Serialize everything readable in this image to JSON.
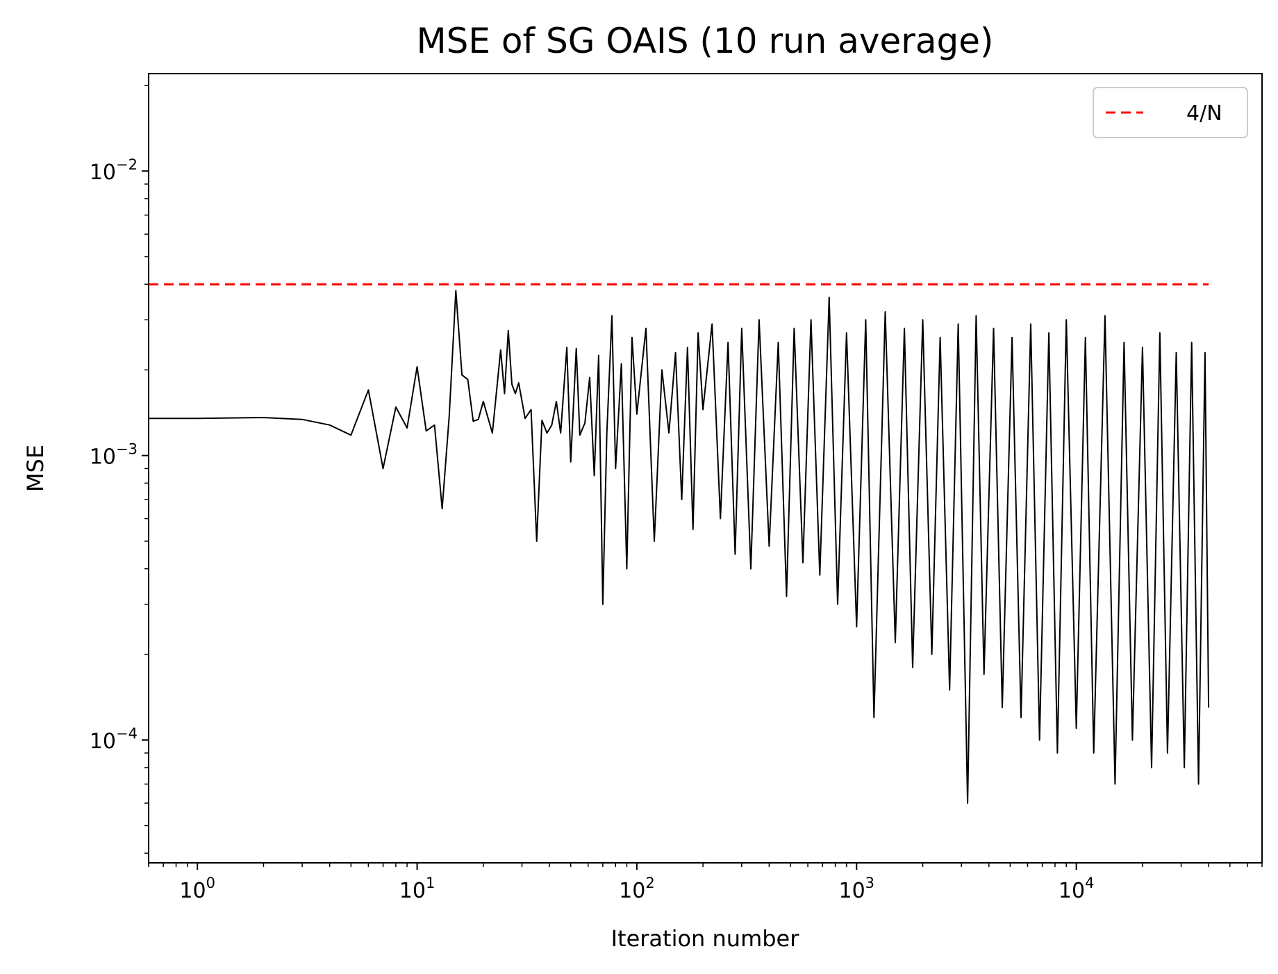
{
  "chart_data": {
    "type": "line",
    "title": "MSE of SG OAIS (10 run average)",
    "xlabel": "Iteration number",
    "ylabel": "MSE",
    "x_scale": "log",
    "y_scale": "log",
    "xlim": [
      0.6,
      70000
    ],
    "ylim": [
      3.7e-05,
      0.022
    ],
    "x_ticks": [
      {
        "value": 1,
        "base": "10",
        "exp": "0"
      },
      {
        "value": 10,
        "base": "10",
        "exp": "1"
      },
      {
        "value": 100,
        "base": "10",
        "exp": "2"
      },
      {
        "value": 1000,
        "base": "10",
        "exp": "3"
      },
      {
        "value": 10000,
        "base": "10",
        "exp": "4"
      }
    ],
    "y_ticks": [
      {
        "value": 0.0001,
        "base": "10",
        "exp": "−4"
      },
      {
        "value": 0.001,
        "base": "10",
        "exp": "−3"
      },
      {
        "value": 0.01,
        "base": "10",
        "exp": "−2"
      }
    ],
    "legend": {
      "position": "upper right",
      "entries": [
        {
          "label": "4/N",
          "color": "#ff0000",
          "style": "dashed"
        }
      ]
    },
    "grid": false,
    "series": [
      {
        "name": "MSE",
        "color": "#000000",
        "x": [
          0.6,
          1,
          2,
          3,
          4,
          5,
          6,
          7,
          8,
          9,
          10,
          11,
          12,
          13,
          14,
          15,
          16,
          17,
          18,
          19,
          20,
          22,
          24,
          25,
          26,
          27,
          28,
          29,
          31,
          33,
          35,
          37,
          39,
          41,
          43,
          45,
          48,
          50,
          53,
          55,
          58,
          61,
          64,
          67,
          70,
          73,
          77,
          80,
          85,
          90,
          95,
          100,
          110,
          120,
          130,
          140,
          150,
          160,
          170,
          180,
          190,
          200,
          220,
          240,
          260,
          280,
          300,
          330,
          360,
          400,
          440,
          480,
          520,
          570,
          620,
          680,
          750,
          820,
          900,
          1000,
          1100,
          1200,
          1350,
          1500,
          1650,
          1800,
          2000,
          2200,
          2400,
          2650,
          2900,
          3200,
          3500,
          3800,
          4200,
          4600,
          5100,
          5600,
          6200,
          6800,
          7500,
          8200,
          9000,
          10000,
          11000,
          12000,
          13500,
          15000,
          16500,
          18000,
          20000,
          22000,
          24000,
          26000,
          28500,
          31000,
          33500,
          36000,
          38500,
          40000
        ],
        "y": [
          0.00135,
          0.00135,
          0.00136,
          0.00134,
          0.00128,
          0.00118,
          0.0017,
          0.0009,
          0.00148,
          0.00125,
          0.00205,
          0.00122,
          0.00128,
          0.00065,
          0.00138,
          0.0038,
          0.00192,
          0.00185,
          0.00132,
          0.00134,
          0.00155,
          0.0012,
          0.00235,
          0.00165,
          0.00275,
          0.00178,
          0.00165,
          0.0018,
          0.00135,
          0.00145,
          0.0005,
          0.00133,
          0.0012,
          0.00128,
          0.00155,
          0.0012,
          0.0024,
          0.00095,
          0.00238,
          0.00118,
          0.0013,
          0.00188,
          0.00085,
          0.00225,
          0.0003,
          0.0012,
          0.0031,
          0.0009,
          0.0021,
          0.0004,
          0.0026,
          0.0014,
          0.0028,
          0.0005,
          0.002,
          0.0012,
          0.0023,
          0.0007,
          0.0024,
          0.00055,
          0.0027,
          0.00145,
          0.0029,
          0.0006,
          0.0025,
          0.00045,
          0.0028,
          0.0004,
          0.003,
          0.00048,
          0.0025,
          0.00032,
          0.0028,
          0.00042,
          0.003,
          0.00038,
          0.0036,
          0.0003,
          0.0027,
          0.00025,
          0.003,
          0.00012,
          0.0032,
          0.00022,
          0.0028,
          0.00018,
          0.003,
          0.0002,
          0.0026,
          0.00015,
          0.0029,
          6e-05,
          0.0031,
          0.00017,
          0.0028,
          0.00013,
          0.0026,
          0.00012,
          0.0029,
          0.0001,
          0.0027,
          9e-05,
          0.003,
          0.00011,
          0.0026,
          9e-05,
          0.0031,
          7e-05,
          0.0025,
          0.0001,
          0.0024,
          8e-05,
          0.0027,
          9e-05,
          0.0023,
          8e-05,
          0.0025,
          7e-05,
          0.0023,
          0.00013
        ]
      },
      {
        "name": "4/N",
        "color": "#ff0000",
        "style": "dashed",
        "x": [
          0.6,
          40000
        ],
        "y": [
          0.004,
          0.004
        ]
      }
    ]
  }
}
